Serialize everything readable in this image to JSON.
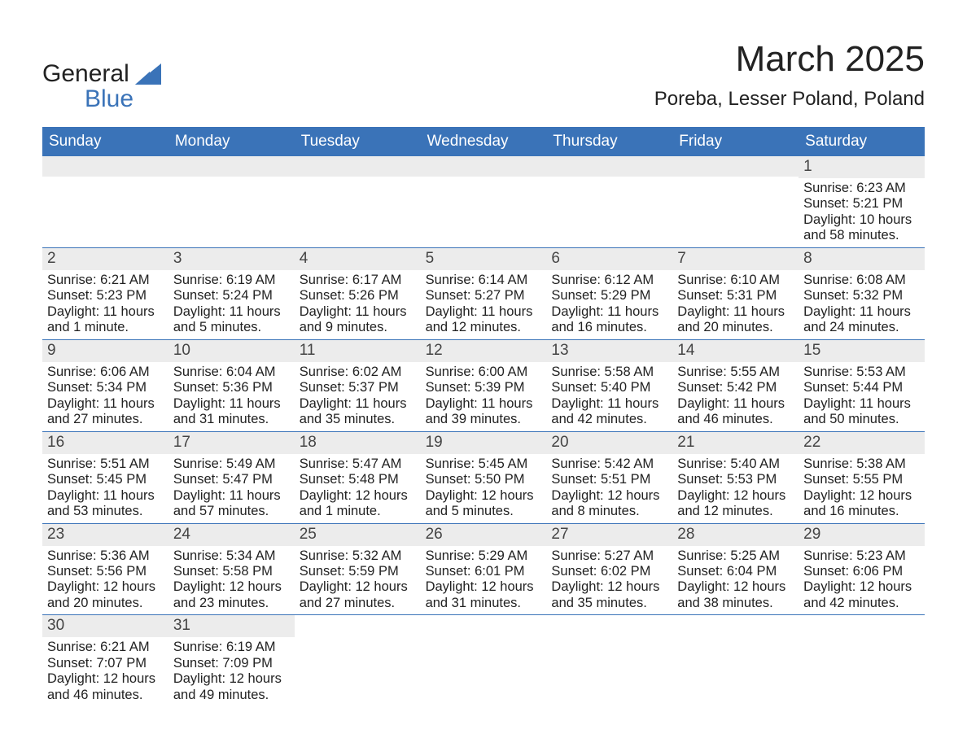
{
  "logo": {
    "word1": "General",
    "word2": "Blue",
    "word1_color": "#222222",
    "word2_color": "#3a73b8",
    "triangle_color": "#3a73b8"
  },
  "header": {
    "month_title": "March 2025",
    "location": "Poreba, Lesser Poland, Poland"
  },
  "style": {
    "header_bg": "#3a73b8",
    "header_text_color": "#ffffff",
    "daynum_bg": "#ececec",
    "row_divider_color": "#3a73b8",
    "body_text_color": "#222222",
    "page_bg": "#ffffff"
  },
  "days_of_week": [
    "Sunday",
    "Monday",
    "Tuesday",
    "Wednesday",
    "Thursday",
    "Friday",
    "Saturday"
  ],
  "weeks": [
    [
      {
        "day": "",
        "sunrise": "",
        "sunset": "",
        "daylight1": "",
        "daylight2": ""
      },
      {
        "day": "",
        "sunrise": "",
        "sunset": "",
        "daylight1": "",
        "daylight2": ""
      },
      {
        "day": "",
        "sunrise": "",
        "sunset": "",
        "daylight1": "",
        "daylight2": ""
      },
      {
        "day": "",
        "sunrise": "",
        "sunset": "",
        "daylight1": "",
        "daylight2": ""
      },
      {
        "day": "",
        "sunrise": "",
        "sunset": "",
        "daylight1": "",
        "daylight2": ""
      },
      {
        "day": "",
        "sunrise": "",
        "sunset": "",
        "daylight1": "",
        "daylight2": ""
      },
      {
        "day": "1",
        "sunrise": "Sunrise: 6:23 AM",
        "sunset": "Sunset: 5:21 PM",
        "daylight1": "Daylight: 10 hours",
        "daylight2": "and 58 minutes."
      }
    ],
    [
      {
        "day": "2",
        "sunrise": "Sunrise: 6:21 AM",
        "sunset": "Sunset: 5:23 PM",
        "daylight1": "Daylight: 11 hours",
        "daylight2": "and 1 minute."
      },
      {
        "day": "3",
        "sunrise": "Sunrise: 6:19 AM",
        "sunset": "Sunset: 5:24 PM",
        "daylight1": "Daylight: 11 hours",
        "daylight2": "and 5 minutes."
      },
      {
        "day": "4",
        "sunrise": "Sunrise: 6:17 AM",
        "sunset": "Sunset: 5:26 PM",
        "daylight1": "Daylight: 11 hours",
        "daylight2": "and 9 minutes."
      },
      {
        "day": "5",
        "sunrise": "Sunrise: 6:14 AM",
        "sunset": "Sunset: 5:27 PM",
        "daylight1": "Daylight: 11 hours",
        "daylight2": "and 12 minutes."
      },
      {
        "day": "6",
        "sunrise": "Sunrise: 6:12 AM",
        "sunset": "Sunset: 5:29 PM",
        "daylight1": "Daylight: 11 hours",
        "daylight2": "and 16 minutes."
      },
      {
        "day": "7",
        "sunrise": "Sunrise: 6:10 AM",
        "sunset": "Sunset: 5:31 PM",
        "daylight1": "Daylight: 11 hours",
        "daylight2": "and 20 minutes."
      },
      {
        "day": "8",
        "sunrise": "Sunrise: 6:08 AM",
        "sunset": "Sunset: 5:32 PM",
        "daylight1": "Daylight: 11 hours",
        "daylight2": "and 24 minutes."
      }
    ],
    [
      {
        "day": "9",
        "sunrise": "Sunrise: 6:06 AM",
        "sunset": "Sunset: 5:34 PM",
        "daylight1": "Daylight: 11 hours",
        "daylight2": "and 27 minutes."
      },
      {
        "day": "10",
        "sunrise": "Sunrise: 6:04 AM",
        "sunset": "Sunset: 5:36 PM",
        "daylight1": "Daylight: 11 hours",
        "daylight2": "and 31 minutes."
      },
      {
        "day": "11",
        "sunrise": "Sunrise: 6:02 AM",
        "sunset": "Sunset: 5:37 PM",
        "daylight1": "Daylight: 11 hours",
        "daylight2": "and 35 minutes."
      },
      {
        "day": "12",
        "sunrise": "Sunrise: 6:00 AM",
        "sunset": "Sunset: 5:39 PM",
        "daylight1": "Daylight: 11 hours",
        "daylight2": "and 39 minutes."
      },
      {
        "day": "13",
        "sunrise": "Sunrise: 5:58 AM",
        "sunset": "Sunset: 5:40 PM",
        "daylight1": "Daylight: 11 hours",
        "daylight2": "and 42 minutes."
      },
      {
        "day": "14",
        "sunrise": "Sunrise: 5:55 AM",
        "sunset": "Sunset: 5:42 PM",
        "daylight1": "Daylight: 11 hours",
        "daylight2": "and 46 minutes."
      },
      {
        "day": "15",
        "sunrise": "Sunrise: 5:53 AM",
        "sunset": "Sunset: 5:44 PM",
        "daylight1": "Daylight: 11 hours",
        "daylight2": "and 50 minutes."
      }
    ],
    [
      {
        "day": "16",
        "sunrise": "Sunrise: 5:51 AM",
        "sunset": "Sunset: 5:45 PM",
        "daylight1": "Daylight: 11 hours",
        "daylight2": "and 53 minutes."
      },
      {
        "day": "17",
        "sunrise": "Sunrise: 5:49 AM",
        "sunset": "Sunset: 5:47 PM",
        "daylight1": "Daylight: 11 hours",
        "daylight2": "and 57 minutes."
      },
      {
        "day": "18",
        "sunrise": "Sunrise: 5:47 AM",
        "sunset": "Sunset: 5:48 PM",
        "daylight1": "Daylight: 12 hours",
        "daylight2": "and 1 minute."
      },
      {
        "day": "19",
        "sunrise": "Sunrise: 5:45 AM",
        "sunset": "Sunset: 5:50 PM",
        "daylight1": "Daylight: 12 hours",
        "daylight2": "and 5 minutes."
      },
      {
        "day": "20",
        "sunrise": "Sunrise: 5:42 AM",
        "sunset": "Sunset: 5:51 PM",
        "daylight1": "Daylight: 12 hours",
        "daylight2": "and 8 minutes."
      },
      {
        "day": "21",
        "sunrise": "Sunrise: 5:40 AM",
        "sunset": "Sunset: 5:53 PM",
        "daylight1": "Daylight: 12 hours",
        "daylight2": "and 12 minutes."
      },
      {
        "day": "22",
        "sunrise": "Sunrise: 5:38 AM",
        "sunset": "Sunset: 5:55 PM",
        "daylight1": "Daylight: 12 hours",
        "daylight2": "and 16 minutes."
      }
    ],
    [
      {
        "day": "23",
        "sunrise": "Sunrise: 5:36 AM",
        "sunset": "Sunset: 5:56 PM",
        "daylight1": "Daylight: 12 hours",
        "daylight2": "and 20 minutes."
      },
      {
        "day": "24",
        "sunrise": "Sunrise: 5:34 AM",
        "sunset": "Sunset: 5:58 PM",
        "daylight1": "Daylight: 12 hours",
        "daylight2": "and 23 minutes."
      },
      {
        "day": "25",
        "sunrise": "Sunrise: 5:32 AM",
        "sunset": "Sunset: 5:59 PM",
        "daylight1": "Daylight: 12 hours",
        "daylight2": "and 27 minutes."
      },
      {
        "day": "26",
        "sunrise": "Sunrise: 5:29 AM",
        "sunset": "Sunset: 6:01 PM",
        "daylight1": "Daylight: 12 hours",
        "daylight2": "and 31 minutes."
      },
      {
        "day": "27",
        "sunrise": "Sunrise: 5:27 AM",
        "sunset": "Sunset: 6:02 PM",
        "daylight1": "Daylight: 12 hours",
        "daylight2": "and 35 minutes."
      },
      {
        "day": "28",
        "sunrise": "Sunrise: 5:25 AM",
        "sunset": "Sunset: 6:04 PM",
        "daylight1": "Daylight: 12 hours",
        "daylight2": "and 38 minutes."
      },
      {
        "day": "29",
        "sunrise": "Sunrise: 5:23 AM",
        "sunset": "Sunset: 6:06 PM",
        "daylight1": "Daylight: 12 hours",
        "daylight2": "and 42 minutes."
      }
    ],
    [
      {
        "day": "30",
        "sunrise": "Sunrise: 6:21 AM",
        "sunset": "Sunset: 7:07 PM",
        "daylight1": "Daylight: 12 hours",
        "daylight2": "and 46 minutes."
      },
      {
        "day": "31",
        "sunrise": "Sunrise: 6:19 AM",
        "sunset": "Sunset: 7:09 PM",
        "daylight1": "Daylight: 12 hours",
        "daylight2": "and 49 minutes."
      },
      {
        "day": "",
        "sunrise": "",
        "sunset": "",
        "daylight1": "",
        "daylight2": ""
      },
      {
        "day": "",
        "sunrise": "",
        "sunset": "",
        "daylight1": "",
        "daylight2": ""
      },
      {
        "day": "",
        "sunrise": "",
        "sunset": "",
        "daylight1": "",
        "daylight2": ""
      },
      {
        "day": "",
        "sunrise": "",
        "sunset": "",
        "daylight1": "",
        "daylight2": ""
      },
      {
        "day": "",
        "sunrise": "",
        "sunset": "",
        "daylight1": "",
        "daylight2": ""
      }
    ]
  ]
}
